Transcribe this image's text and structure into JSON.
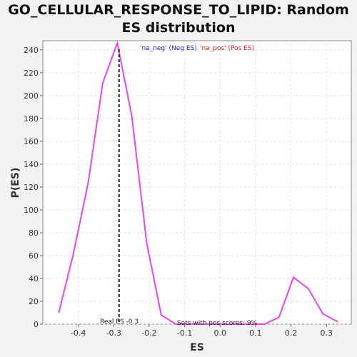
{
  "title_line1": "GO_CELLULAR_RESPONSE_TO_LIPID: Random",
  "title_line2": "ES distribution",
  "chart_data": {
    "type": "line",
    "xlabel": "ES",
    "ylabel": "P(ES)",
    "xlim": [
      -0.5,
      0.37
    ],
    "ylim": [
      0,
      248
    ],
    "xticks": [
      -0.4,
      -0.3,
      -0.2,
      -0.1,
      0.0,
      0.1,
      0.2,
      0.3
    ],
    "xtick_labels": [
      "-0.4",
      "-0.3",
      "-0.2",
      "-0.1",
      "0.0",
      "0.1",
      "0.2",
      "0.3"
    ],
    "yticks": [
      0,
      20,
      40,
      60,
      80,
      100,
      120,
      140,
      160,
      180,
      200,
      220,
      240
    ],
    "grid": true,
    "line_color": "#ee44ee",
    "series": [
      {
        "x": [
          -0.455,
          -0.415,
          -0.372,
          -0.331,
          -0.29,
          -0.249,
          -0.207,
          -0.166,
          -0.125,
          -0.083,
          -0.042,
          0.0,
          0.042,
          0.083,
          0.125,
          0.166,
          0.207,
          0.249,
          0.29,
          0.332
        ],
        "values": [
          10,
          60,
          124,
          211,
          246,
          182,
          71,
          8,
          0,
          0,
          0,
          0,
          0,
          0,
          0,
          6,
          41,
          31,
          9,
          2
        ]
      }
    ],
    "real_es": -0.285,
    "real_es_label": "Real ES -0.3",
    "legend_neg": "'na_neg' (Neg ES)",
    "legend_pos": "'na_pos' (Pos ES)",
    "legend_neg_color": "#2222dd",
    "legend_pos_color": "#dd2222",
    "annotation": "Sets with pos scores: 9%"
  }
}
